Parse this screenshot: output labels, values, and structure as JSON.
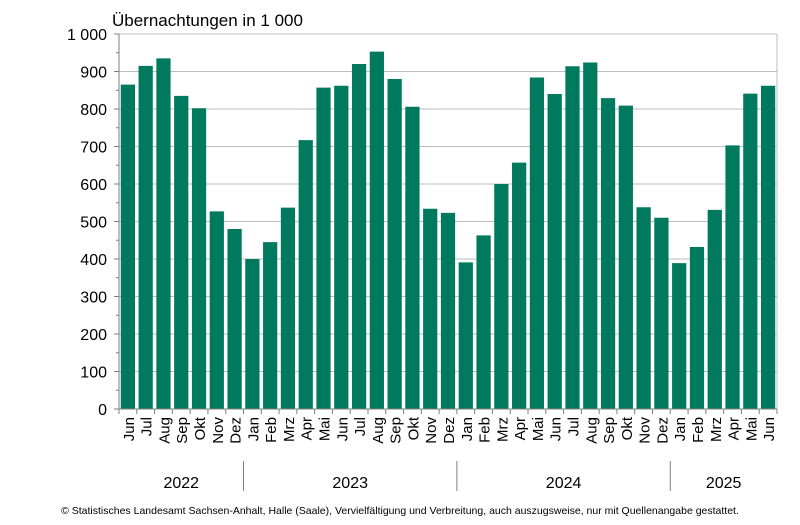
{
  "chart_data": {
    "type": "bar",
    "title": "Übernachtungen in 1 000",
    "bar_color": "#007a5e",
    "ylim": [
      0,
      1000
    ],
    "yticks": [
      0,
      100,
      200,
      300,
      400,
      500,
      600,
      700,
      800,
      900,
      1000
    ],
    "ytick_labels": [
      "0",
      "100",
      "200",
      "300",
      "400",
      "500",
      "600",
      "700",
      "800",
      "900",
      "1 000"
    ],
    "grid": "horizontal",
    "categories": [
      "Jun",
      "Jul",
      "Aug",
      "Sep",
      "Okt",
      "Nov",
      "Dez",
      "Jan",
      "Feb",
      "Mrz",
      "Apr",
      "Mai",
      "Jun",
      "Jul",
      "Aug",
      "Sep",
      "Okt",
      "Nov",
      "Dez",
      "Jan",
      "Feb",
      "Mrz",
      "Apr",
      "Mai",
      "Jun",
      "Jul",
      "Aug",
      "Sep",
      "Okt",
      "Nov",
      "Dez",
      "Jan",
      "Feb",
      "Mrz",
      "Apr",
      "Mai",
      "Jun"
    ],
    "values": [
      865,
      915,
      935,
      835,
      802,
      527,
      480,
      400,
      445,
      537,
      717,
      857,
      862,
      920,
      953,
      880,
      806,
      534,
      523,
      391,
      463,
      600,
      657,
      884,
      840,
      914,
      924,
      829,
      809,
      538,
      510,
      389,
      432,
      531,
      703,
      841,
      862
    ],
    "year_groups": [
      {
        "label": "2022",
        "start": 0,
        "count": 7
      },
      {
        "label": "2023",
        "start": 7,
        "count": 12
      },
      {
        "label": "2024",
        "start": 19,
        "count": 12
      },
      {
        "label": "2025",
        "start": 31,
        "count": 6
      }
    ]
  },
  "footer": "© Statistisches Landesamt Sachsen-Anhalt, Halle (Saale), Vervielfältigung und Verbreitung, auch auszugsweise, nur mit Quellenangabe gestattet."
}
